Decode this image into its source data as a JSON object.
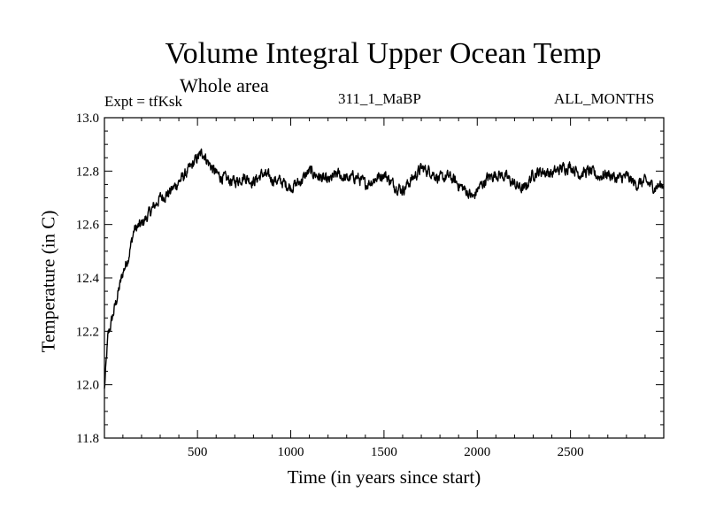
{
  "header": {
    "title": "Volume Integral Upper Ocean Temp",
    "subtitle": "Whole area",
    "experiment": "Expt = tfKsk",
    "run_id": "311_1_MaBP",
    "months": "ALL_MONTHS"
  },
  "chart_data": {
    "type": "line",
    "title": "Volume Integral Upper Ocean Temp",
    "subtitle": "Whole area",
    "xlabel": "Time (in years since start)",
    "ylabel": "Temperature (in C)",
    "xlim": [
      1,
      3000
    ],
    "ylim": [
      11.8,
      13.0
    ],
    "x_ticks": [
      500,
      1000,
      1500,
      2000,
      2500
    ],
    "x_tick_labels": [
      "500",
      "1000",
      "1500",
      "2000",
      "2500"
    ],
    "y_ticks": [
      11.8,
      12.0,
      12.2,
      12.4,
      12.6,
      12.8,
      13.0
    ],
    "y_tick_labels": [
      "11.8",
      "12.0",
      "12.2",
      "12.4",
      "12.6",
      "12.8",
      "13.0"
    ],
    "grid": false,
    "series": [
      {
        "name": "Volume Integral Upper Ocean Temp",
        "color": "#000000",
        "x": [
          1,
          20,
          40,
          60,
          80,
          100,
          130,
          160,
          200,
          250,
          300,
          350,
          400,
          450,
          500,
          530,
          560,
          600,
          650,
          700,
          750,
          800,
          850,
          900,
          950,
          1000,
          1050,
          1100,
          1150,
          1200,
          1250,
          1300,
          1350,
          1400,
          1450,
          1500,
          1550,
          1600,
          1650,
          1700,
          1750,
          1800,
          1850,
          1900,
          1950,
          1980,
          2000,
          2050,
          2100,
          2150,
          2200,
          2250,
          2300,
          2350,
          2400,
          2450,
          2500,
          2550,
          2600,
          2650,
          2700,
          2750,
          2800,
          2850,
          2900,
          2950,
          3000
        ],
        "values": [
          11.98,
          12.18,
          12.24,
          12.3,
          12.36,
          12.42,
          12.48,
          12.58,
          12.6,
          12.65,
          12.7,
          12.72,
          12.76,
          12.8,
          12.85,
          12.87,
          12.83,
          12.79,
          12.77,
          12.76,
          12.78,
          12.76,
          12.79,
          12.77,
          12.76,
          12.74,
          12.76,
          12.8,
          12.78,
          12.76,
          12.79,
          12.77,
          12.78,
          12.75,
          12.77,
          12.79,
          12.75,
          12.73,
          12.77,
          12.81,
          12.8,
          12.77,
          12.78,
          12.75,
          12.72,
          12.7,
          12.73,
          12.77,
          12.79,
          12.78,
          12.75,
          12.73,
          12.79,
          12.8,
          12.79,
          12.81,
          12.82,
          12.79,
          12.8,
          12.78,
          12.79,
          12.77,
          12.78,
          12.75,
          12.76,
          12.74,
          12.75
        ]
      }
    ]
  }
}
